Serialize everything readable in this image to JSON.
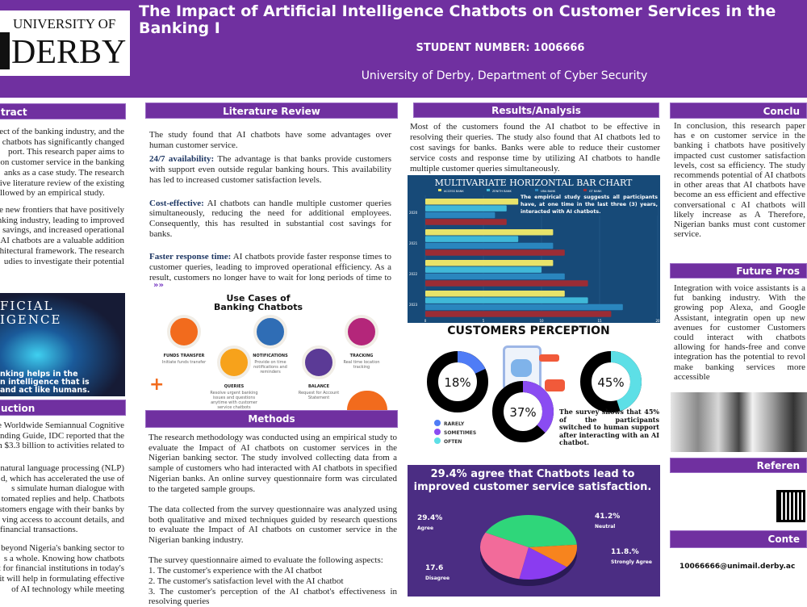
{
  "header": {
    "logo_line1": "UNIVERSITY OF",
    "logo_line2": "DERBY",
    "title": "The Impact of Artificial Intelligence Chatbots on Customer Services in the Banking I",
    "student_number": "STUDENT NUMBER: 1006666",
    "department": "University of Derby, Department of Cyber Security"
  },
  "abstract": {
    "heading": "tract",
    "p1": [
      "pect of the banking industry, and the",
      "e chatbots has significantly changed",
      "port. This research paper aims to",
      "on customer service in the banking",
      "anks as a case study. The research",
      "usive literature review of the existing",
      "llowed by an empirical study."
    ],
    "p2": [
      "are new frontiers that have positively",
      "anking industry, leading to improved",
      "savings, and increased operational",
      "t AI chatbots are a valuable addition",
      "chitectural framework. The research",
      "udies to investigate their potential"
    ]
  },
  "ai_image": {
    "line1": "FICIAL",
    "line2": "IGENCE",
    "caption": [
      "nking helps in the",
      "n intelligence that is",
      "and act like humans."
    ]
  },
  "introduction": {
    "heading": "uction",
    "p1": [
      "he Worldwide Semiannual Cognitive",
      "nding Guide, IDC reported that the",
      "n $3.3 billion to activities related to"
    ],
    "p2": [
      "natural language processing (NLP)",
      "d, which has accelerated the use of",
      "s simulate human dialogue with",
      "tomated replies and help. Chatbots",
      "stomers engage with their banks by",
      "ving access to account details, and",
      "financial transactions."
    ],
    "p3": [
      "d beyond Nigeria's banking sector to",
      "s a whole. Knowing how chatbots",
      "t for financial institutions in today's",
      "s it will help in formulating effective",
      "of AI technology while meeting"
    ]
  },
  "literature": {
    "heading": "Literature Review",
    "intro": "The study found that AI chatbots have some advantages over human customer service.",
    "items": [
      {
        "term": "24/7 availability:",
        "text": " The advantage is that banks provide customers with support even outside regular banking hours. This availability has led to increased customer satisfaction levels."
      },
      {
        "term": "Cost-effective:",
        "text": " AI chatbots can handle multiple customer queries simultaneously, reducing the need for additional employees. Consequently, this has resulted in substantial cost savings for banks."
      },
      {
        "term": "Faster response time:",
        "text": " AI chatbots provide faster response times to customer queries, leading to improved operational efficiency. As a result, customers no longer have to wait for long periods of time to receive assistance, which increases customer satisfaction."
      }
    ]
  },
  "use_cases": {
    "title": "Use Cases of Banking Chatbots",
    "items": [
      {
        "label": "FUNDS TRANSFER",
        "desc": "Initiate funds transfer",
        "color": "#f26b1d"
      },
      {
        "label": "QUERIES",
        "desc": "Resolve urgent banking issues and questions anytime with customer service chatbots",
        "color": "#f7a21b"
      },
      {
        "label": "NOTIFICATIONS",
        "desc": "Provide on time notifications and reminders",
        "color": "#2f6db5"
      },
      {
        "label": "BALANCE",
        "desc": "Request for Account Statement",
        "color": "#5b3a96"
      },
      {
        "label": "TRACKING",
        "desc": "Real time location tracking",
        "color": "#b4267a"
      }
    ]
  },
  "methods": {
    "heading": "Methods",
    "p1": "The research methodology was conducted using an empirical study to evaluate the Impact of AI chatbots on customer services in the Nigerian banking sector. The study involved collecting data from a sample of customers who had interacted with AI chatbots in specified Nigerian banks. An online survey questionnaire form was circulated to the targeted sample groups.",
    "p2": "The data collected from the survey questionnaire was analyzed using both qualitative and mixed techniques guided by research questions to evaluate the Impact of AI chatbots on customer service in the Nigerian banking industry.",
    "p3": "The survey questionnaire aimed to evaluate the following aspects:",
    "list": [
      "1. The customer's experience with the AI chatbot",
      "2. The customer's satisfaction level with the AI chatbot",
      "3. The customer's perception of the AI chatbot's effectiveness in resolving queries"
    ]
  },
  "results": {
    "heading": "Results/Analysis",
    "text": "Most of the customers found the AI chatbot to be effective in resolving their queries. The study also found that AI chatbots led to cost savings for banks. Banks were able to reduce their customer service costs and response time by utilizing AI chatbots to handle multiple customer queries simultaneously."
  },
  "chart_data": [
    {
      "type": "bar",
      "orientation": "horizontal",
      "title": "MULTIVARIATE HORIZONTAL BAR CHART",
      "categories": [
        "2020",
        "2021",
        "2022",
        "2023"
      ],
      "series": [
        {
          "name": "ACCESS BANK",
          "color": "#e8e36a",
          "values": [
            8,
            11,
            11,
            12
          ]
        },
        {
          "name": "ZENITH BANK",
          "color": "#3fb8d8",
          "values": [
            7,
            8,
            10,
            14
          ]
        },
        {
          "name": "UBA BANK",
          "color": "#2a86be",
          "values": [
            6,
            11,
            12,
            17
          ]
        },
        {
          "name": "GT BANK",
          "color": "#9b2c35",
          "values": [
            7,
            12,
            14,
            16
          ]
        }
      ],
      "xlim": [
        0,
        20
      ],
      "xticks": [
        0,
        5,
        10,
        15,
        20
      ],
      "legend": "top",
      "annotation": "The empirical study suggests all participants have, at one time in the last three (3) years, interacted with AI chatbots."
    },
    {
      "type": "donut",
      "title": "CUSTOMERS PERCEPTION",
      "items": [
        {
          "name": "RARELY",
          "value": 18,
          "color": "#4f7cf6"
        },
        {
          "name": "SOMETIMES",
          "value": 37,
          "color": "#8a4cf2"
        },
        {
          "name": "OFTEN",
          "value": 45,
          "color": "#5ddfe6"
        }
      ],
      "legend": "bottom-left",
      "annotation": "The survey shows that 45% of the participants switched to human support after interacting with an AI chatbot."
    },
    {
      "type": "pie",
      "title": "29.4% agree that Chatbots lead to improved customer service satisfaction.",
      "slices": [
        {
          "name": "Neutral",
          "label": "41.2%",
          "value": 41.2,
          "color": "#2fd67a"
        },
        {
          "name": "Strongly Agree",
          "label": "11.8.%",
          "value": 11.8,
          "color": "#f7841e"
        },
        {
          "name": "Disagree",
          "label": "17.6",
          "value": 17.6,
          "color": "#8a3cf0"
        },
        {
          "name": "Agree",
          "label": "29.4%",
          "value": 29.4,
          "color": "#f26b9a"
        }
      ]
    }
  ],
  "conclusion": {
    "heading": "Conclu",
    "lines": [
      "In conclusion, this research paper has e",
      "on customer service in the banking i",
      "chatbots have positively impacted cust",
      "customer satisfaction levels, cost sa",
      "efficiency. The study recommends",
      "potential of AI chatbots in other areas",
      "that AI chatbots have become an ess",
      "efficient and effective conversational c",
      "AI chatbots will likely increase as A",
      "Therefore, Nigerian banks must cont",
      "customer service."
    ]
  },
  "future": {
    "heading": "Future Pros",
    "lines": [
      "Integration with voice assistants is a fut",
      "banking industry. With the growing pop",
      "Alexa, and Google Assistant, integratin",
      "open up new avenues for customer",
      "Customers could interact with chatbots",
      "allowing for hands-free and conve",
      "integration has the potential to revol",
      "make banking services more accessible"
    ]
  },
  "references": {
    "heading": "Referen"
  },
  "contact": {
    "heading": "Conte",
    "email": "10066666@unimail.derby.ac"
  }
}
